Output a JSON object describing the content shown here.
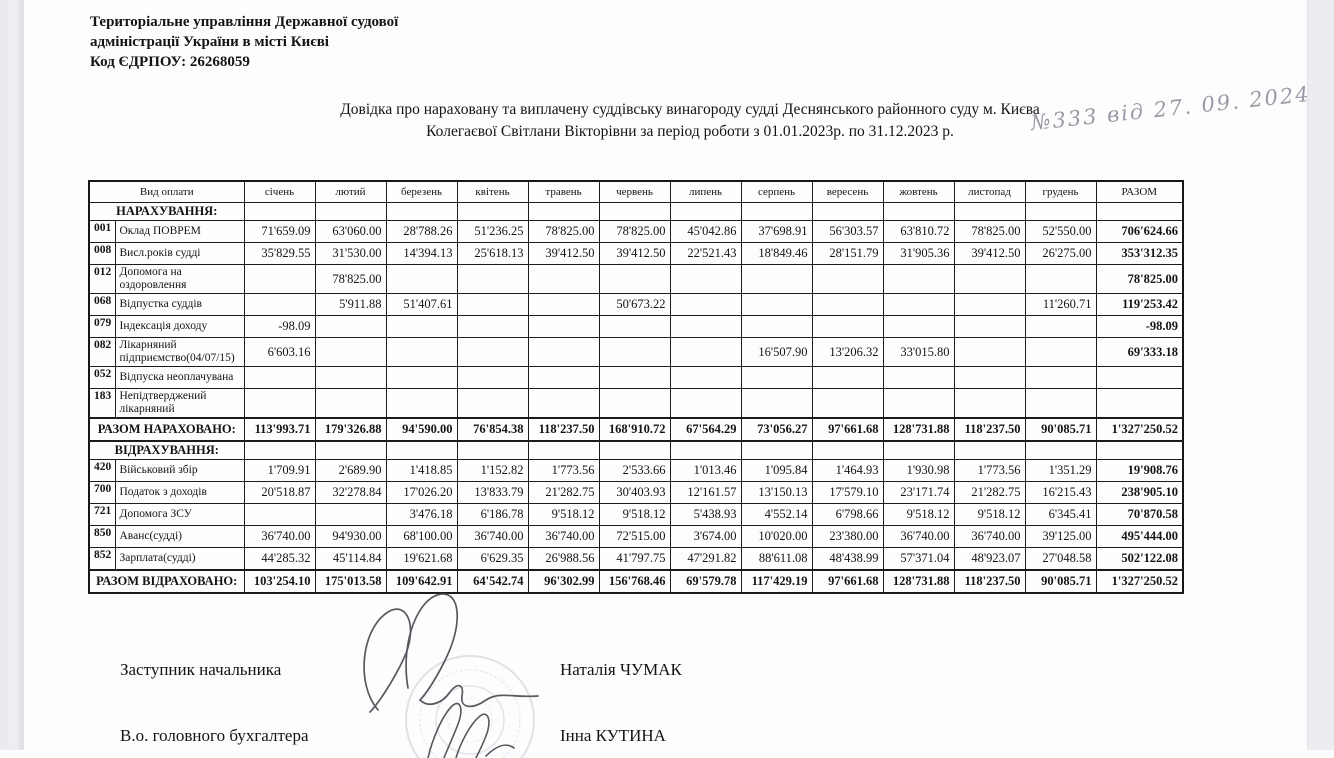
{
  "org": {
    "name_line1": "Територіальне управління Державної судової",
    "name_line2": "адміністрації України в місті Києві",
    "edrpou": "Код ЄДРПОУ: 26268059"
  },
  "title": {
    "line1": "Довідка про нараховану та виплачену суддівську винагороду судді Деснянського районного суду м. Києва",
    "line2": "Колегаєвої Світлани Вікторівни за період роботи з 01.01.2023р. по 31.12.2023 р.",
    "handwritten_note": "№333 від 27. 09. 2024"
  },
  "table": {
    "columns": [
      "Вид оплати",
      "січень",
      "лютий",
      "березень",
      "квітень",
      "травень",
      "червень",
      "липень",
      "серпень",
      "вересень",
      "жовтень",
      "листопад",
      "грудень",
      "РАЗОМ"
    ],
    "rows": [
      {
        "type": "section",
        "label": "НАРАХУВАННЯ:"
      },
      {
        "type": "data",
        "code": "001",
        "label": "Оклад ПОВРЕМ",
        "values": [
          "71'659.09",
          "63'060.00",
          "28'788.26",
          "51'236.25",
          "78'825.00",
          "78'825.00",
          "45'042.86",
          "37'698.91",
          "56'303.57",
          "63'810.72",
          "78'825.00",
          "52'550.00"
        ],
        "total": "706'624.66"
      },
      {
        "type": "data",
        "code": "008",
        "label": "Висл.років судді",
        "values": [
          "35'829.55",
          "31'530.00",
          "14'394.13",
          "25'618.13",
          "39'412.50",
          "39'412.50",
          "22'521.43",
          "18'849.46",
          "28'151.79",
          "31'905.36",
          "39'412.50",
          "26'275.00"
        ],
        "total": "353'312.35"
      },
      {
        "type": "data",
        "code": "012",
        "label": "Допомога на оздоровлення",
        "values": [
          "",
          "78'825.00",
          "",
          "",
          "",
          "",
          "",
          "",
          "",
          "",
          "",
          ""
        ],
        "total": "78'825.00"
      },
      {
        "type": "data",
        "code": "068",
        "label": "Відпустка суддів",
        "values": [
          "",
          "5'911.88",
          "51'407.61",
          "",
          "",
          "50'673.22",
          "",
          "",
          "",
          "",
          "",
          "11'260.71"
        ],
        "total": "119'253.42"
      },
      {
        "type": "data",
        "code": "079",
        "label": "Індексація доходу",
        "values": [
          "-98.09",
          "",
          "",
          "",
          "",
          "",
          "",
          "",
          "",
          "",
          "",
          ""
        ],
        "total": "-98.09"
      },
      {
        "type": "data",
        "code": "082",
        "label": "Лікарняний підприємство(04/07/15)",
        "values": [
          "6'603.16",
          "",
          "",
          "",
          "",
          "",
          "",
          "16'507.90",
          "13'206.32",
          "33'015.80",
          "",
          ""
        ],
        "total": "69'333.18"
      },
      {
        "type": "data",
        "code": "052",
        "label": "Відпуска неоплачувана",
        "values": [
          "",
          "",
          "",
          "",
          "",
          "",
          "",
          "",
          "",
          "",
          "",
          ""
        ],
        "total": ""
      },
      {
        "type": "data",
        "code": "183",
        "label": "Непідтверджений лікарняний",
        "values": [
          "",
          "",
          "",
          "",
          "",
          "",
          "",
          "",
          "",
          "",
          "",
          ""
        ],
        "total": ""
      },
      {
        "type": "total",
        "label": "РАЗОМ НАРАХОВАНО:",
        "values": [
          "113'993.71",
          "179'326.88",
          "94'590.00",
          "76'854.38",
          "118'237.50",
          "168'910.72",
          "67'564.29",
          "73'056.27",
          "97'661.68",
          "128'731.88",
          "118'237.50",
          "90'085.71"
        ],
        "total": "1'327'250.52"
      },
      {
        "type": "section",
        "label": "ВІДРАХУВАННЯ:"
      },
      {
        "type": "data",
        "code": "420",
        "label": "Військовий збір",
        "values": [
          "1'709.91",
          "2'689.90",
          "1'418.85",
          "1'152.82",
          "1'773.56",
          "2'533.66",
          "1'013.46",
          "1'095.84",
          "1'464.93",
          "1'930.98",
          "1'773.56",
          "1'351.29"
        ],
        "total": "19'908.76"
      },
      {
        "type": "data",
        "code": "700",
        "label": "Податок з доходів",
        "values": [
          "20'518.87",
          "32'278.84",
          "17'026.20",
          "13'833.79",
          "21'282.75",
          "30'403.93",
          "12'161.57",
          "13'150.13",
          "17'579.10",
          "23'171.74",
          "21'282.75",
          "16'215.43"
        ],
        "total": "238'905.10"
      },
      {
        "type": "data",
        "code": "721",
        "label": "Допомога ЗСУ",
        "values": [
          "",
          "",
          "3'476.18",
          "6'186.78",
          "9'518.12",
          "9'518.12",
          "5'438.93",
          "4'552.14",
          "6'798.66",
          "9'518.12",
          "9'518.12",
          "6'345.41"
        ],
        "total": "70'870.58"
      },
      {
        "type": "data",
        "code": "850",
        "label": "Аванс(судді)",
        "values": [
          "36'740.00",
          "94'930.00",
          "68'100.00",
          "36'740.00",
          "36'740.00",
          "72'515.00",
          "3'674.00",
          "10'020.00",
          "23'380.00",
          "36'740.00",
          "36'740.00",
          "39'125.00"
        ],
        "total": "495'444.00"
      },
      {
        "type": "data",
        "code": "852",
        "label": "Зарплата(судді)",
        "values": [
          "44'285.32",
          "45'114.84",
          "19'621.68",
          "6'629.35",
          "26'988.56",
          "41'797.75",
          "47'291.82",
          "88'611.08",
          "48'438.99",
          "57'371.04",
          "48'923.07",
          "27'048.58"
        ],
        "total": "502'122.08"
      },
      {
        "type": "total",
        "label": "РАЗОМ ВІДРАХОВАНО:",
        "values": [
          "103'254.10",
          "175'013.58",
          "109'642.91",
          "64'542.74",
          "96'302.99",
          "156'768.46",
          "69'579.78",
          "117'429.19",
          "97'661.68",
          "128'731.88",
          "118'237.50",
          "90'085.71"
        ],
        "total": "1'327'250.52"
      }
    ]
  },
  "signatures": [
    {
      "position": "Заступник начальника",
      "name": "Наталія ЧУМАК"
    },
    {
      "position": "В.о. головного бухгалтера",
      "name": "Інна КУТИНА"
    }
  ]
}
